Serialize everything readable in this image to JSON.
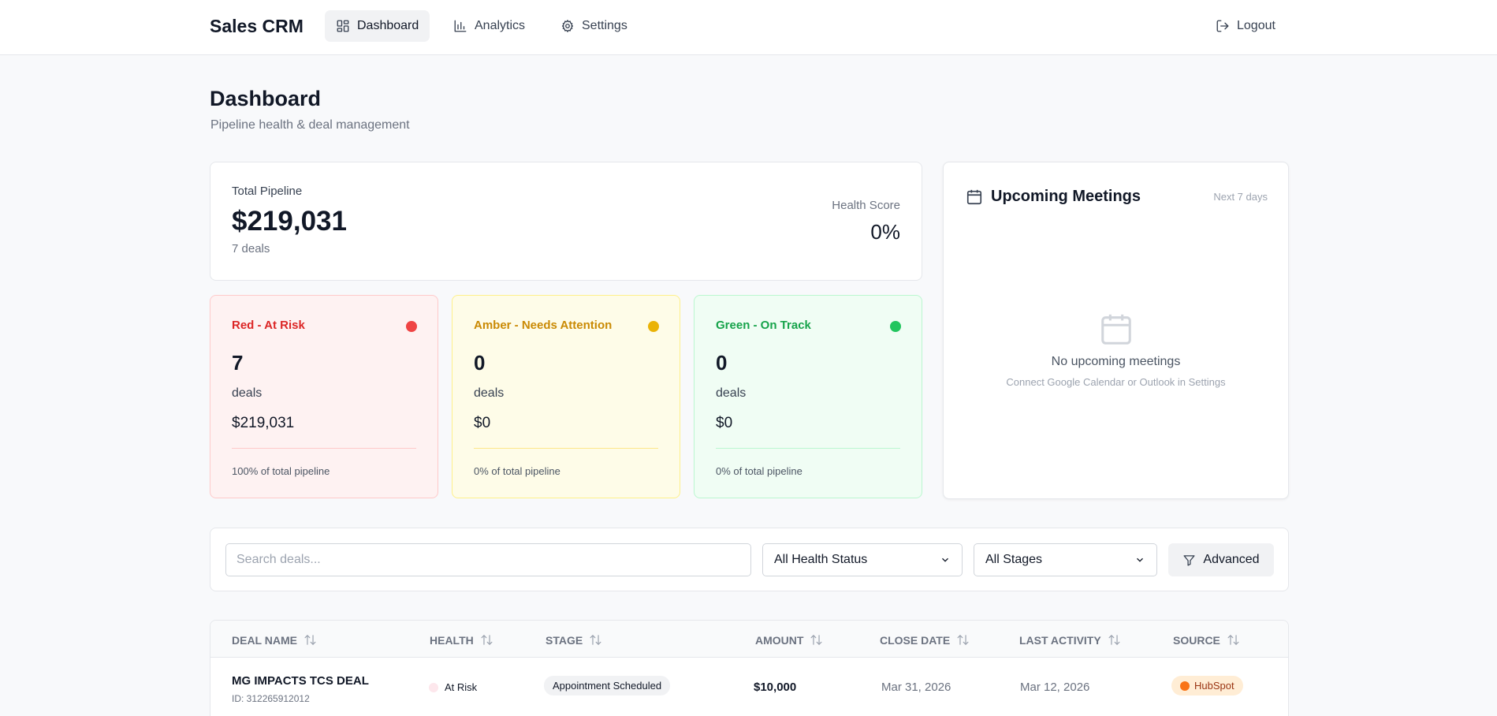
{
  "nav": {
    "brand": "Sales CRM",
    "items": [
      {
        "label": "Dashboard",
        "icon": "layout-grid-icon",
        "active": true
      },
      {
        "label": "Analytics",
        "icon": "bar-chart-icon",
        "active": false
      },
      {
        "label": "Settings",
        "icon": "gear-icon",
        "active": false
      }
    ],
    "logout": "Logout"
  },
  "header": {
    "title": "Dashboard",
    "subtitle": "Pipeline health & deal management"
  },
  "pipeline": {
    "label": "Total Pipeline",
    "value": "$219,031",
    "deals": "7 deals",
    "health_label": "Health Score",
    "health_value": "0%"
  },
  "health_cards": [
    {
      "title": "Red - At Risk",
      "count": "7",
      "unit": "deals",
      "amount": "$219,031",
      "pct": "100% of total pipeline",
      "color": "#dc2626",
      "dot": "#ef4444"
    },
    {
      "title": "Amber - Needs Attention",
      "count": "0",
      "unit": "deals",
      "amount": "$0",
      "pct": "0% of total pipeline",
      "color": "#ca8a04",
      "dot": "#eab308"
    },
    {
      "title": "Green - On Track",
      "count": "0",
      "unit": "deals",
      "amount": "$0",
      "pct": "0% of total pipeline",
      "color": "#16a34a",
      "dot": "#22c55e"
    }
  ],
  "meetings": {
    "title": "Upcoming Meetings",
    "range": "Next 7 days",
    "empty_title": "No upcoming meetings",
    "empty_sub": "Connect Google Calendar or Outlook in Settings"
  },
  "filters": {
    "search_placeholder": "Search deals...",
    "health_select": "All Health Status",
    "stage_select": "All Stages",
    "advanced": "Advanced"
  },
  "table": {
    "columns": [
      "Deal Name",
      "Health",
      "Stage",
      "Amount",
      "Close Date",
      "Last Activity",
      "Source"
    ],
    "rows": [
      {
        "name": "MG IMPACTS TCS DEAL",
        "id": "ID: 312265912012",
        "health": "At Risk",
        "stage": "Appointment Scheduled",
        "amount": "$10,000",
        "close_date": "Mar 31, 2026",
        "last_activity": "Mar 12, 2026",
        "source": "HubSpot"
      }
    ]
  }
}
